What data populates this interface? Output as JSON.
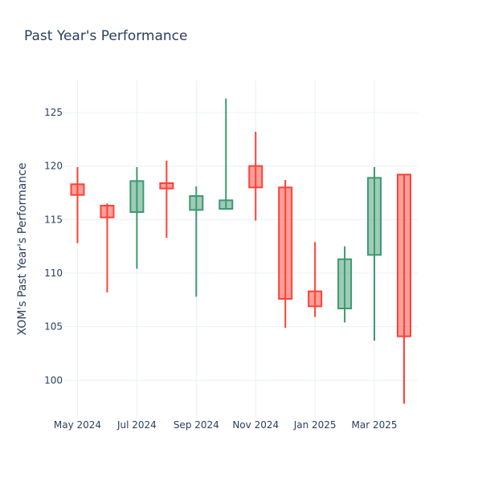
{
  "chart_data": {
    "type": "candlestick",
    "title": "Past Year's Performance",
    "xlabel": "",
    "ylabel": "XOM's Past Year's Performance",
    "ylim": [
      96.5,
      128
    ],
    "yticks": [
      100,
      105,
      110,
      115,
      120,
      125
    ],
    "xticks": [
      {
        "label": "May 2024",
        "date": "2024-05-01"
      },
      {
        "label": "Jul 2024",
        "date": "2024-07-01"
      },
      {
        "label": "Sep 2024",
        "date": "2024-09-01"
      },
      {
        "label": "Nov 2024",
        "date": "2024-11-01"
      },
      {
        "label": "Jan 2025",
        "date": "2025-01-01"
      },
      {
        "label": "Mar 2025",
        "date": "2025-03-01"
      }
    ],
    "grid": true,
    "increasing_color": "#3d9970",
    "decreasing_color": "#ff4136",
    "candles": [
      {
        "date": "2024-05-01",
        "open": 118.3,
        "high": 119.9,
        "low": 112.8,
        "close": 117.3
      },
      {
        "date": "2024-06-01",
        "open": 116.3,
        "high": 116.5,
        "low": 108.2,
        "close": 115.2
      },
      {
        "date": "2024-07-01",
        "open": 115.7,
        "high": 119.9,
        "low": 110.4,
        "close": 118.6
      },
      {
        "date": "2024-08-01",
        "open": 118.4,
        "high": 120.5,
        "low": 113.3,
        "close": 117.9
      },
      {
        "date": "2024-09-01",
        "open": 115.9,
        "high": 118.1,
        "low": 107.8,
        "close": 117.2
      },
      {
        "date": "2024-10-01",
        "open": 116.0,
        "high": 126.3,
        "low": 116.0,
        "close": 116.8
      },
      {
        "date": "2024-11-01",
        "open": 120.0,
        "high": 123.2,
        "low": 114.9,
        "close": 118.0
      },
      {
        "date": "2024-12-01",
        "open": 118.0,
        "high": 118.7,
        "low": 104.9,
        "close": 107.6
      },
      {
        "date": "2025-01-01",
        "open": 108.3,
        "high": 112.9,
        "low": 105.9,
        "close": 106.9
      },
      {
        "date": "2025-02-01",
        "open": 106.7,
        "high": 112.5,
        "low": 105.4,
        "close": 111.3
      },
      {
        "date": "2025-03-01",
        "open": 111.7,
        "high": 119.9,
        "low": 103.7,
        "close": 118.9
      },
      {
        "date": "2025-04-01",
        "open": 119.2,
        "high": 119.2,
        "low": 97.8,
        "close": 104.1
      }
    ]
  }
}
